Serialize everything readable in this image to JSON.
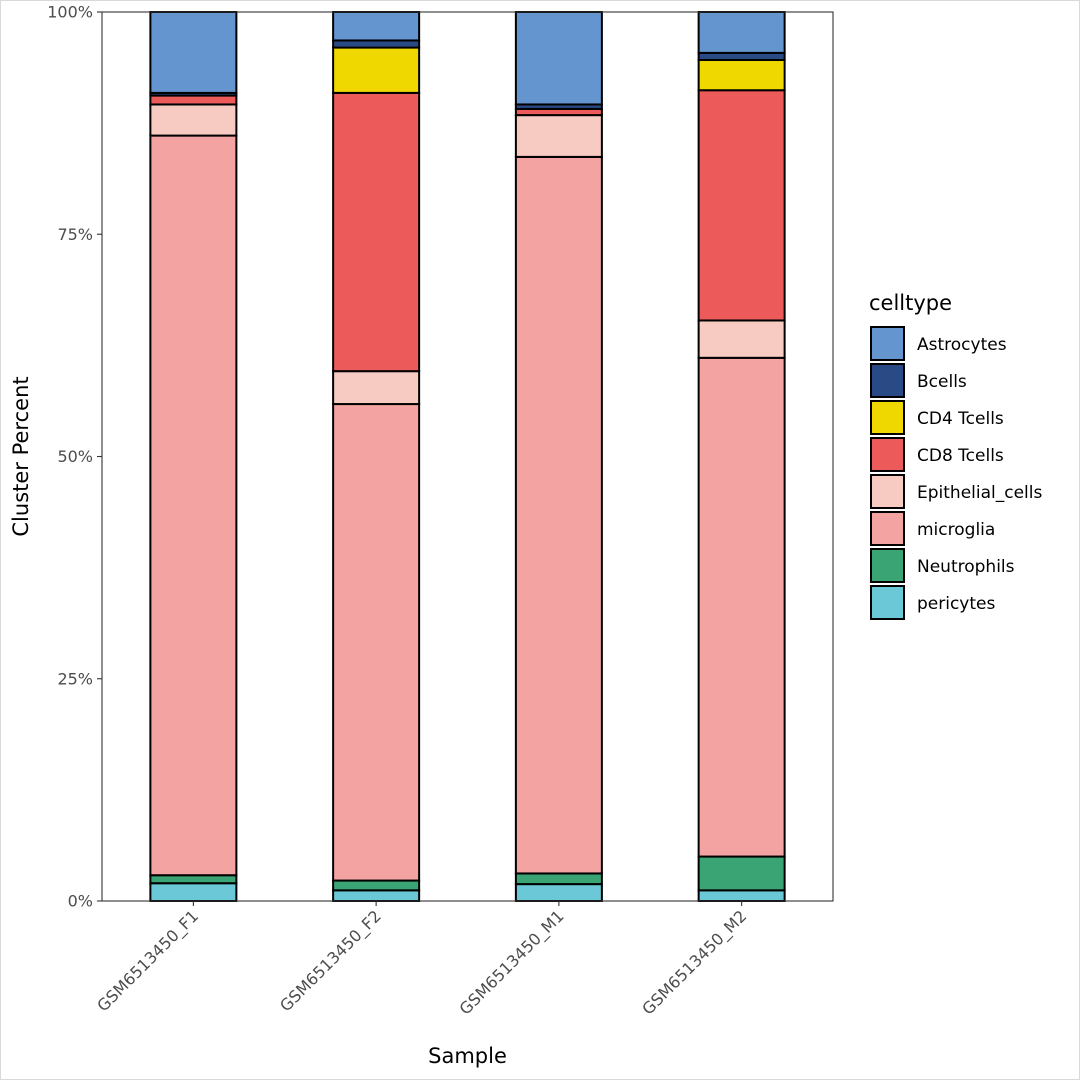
{
  "chart_data": {
    "type": "bar",
    "stacked": true,
    "normalized": true,
    "xlabel": "Sample",
    "ylabel": "Cluster Percent",
    "ylim": [
      0,
      100
    ],
    "yticks": [
      0,
      25,
      50,
      75,
      100
    ],
    "ytick_labels": [
      "0%",
      "25%",
      "50%",
      "75%",
      "100%"
    ],
    "grid": false,
    "legend_title": "celltype",
    "legend_position": "right",
    "categories": [
      "GSM6513450_F1",
      "GSM6513450_F2",
      "GSM6513450_M1",
      "GSM6513450_M2"
    ],
    "series": [
      {
        "name": "pericytes",
        "color": "#6BC9D7",
        "values": [
          2.0,
          1.2,
          1.9,
          1.2
        ]
      },
      {
        "name": "Neutrophils",
        "color": "#3BA474",
        "values": [
          0.9,
          1.1,
          1.2,
          3.8
        ]
      },
      {
        "name": "microglia",
        "color": "#F4A3A3",
        "values": [
          83.2,
          53.6,
          80.6,
          56.1
        ]
      },
      {
        "name": "Epithelial_cells",
        "color": "#F7CBC2",
        "values": [
          3.5,
          3.7,
          4.7,
          4.2
        ]
      },
      {
        "name": "CD8 Tcells",
        "color": "#ED5A5A",
        "values": [
          1.0,
          31.3,
          0.7,
          25.9
        ]
      },
      {
        "name": "CD4 Tcells",
        "color": "#EFD700",
        "values": [
          0.0,
          5.1,
          0.0,
          3.4
        ]
      },
      {
        "name": "Bcells",
        "color": "#2A4A85",
        "values": [
          0.3,
          0.8,
          0.5,
          0.8
        ]
      },
      {
        "name": "Astrocytes",
        "color": "#6495CF",
        "values": [
          9.1,
          3.2,
          10.4,
          4.6
        ]
      }
    ],
    "legend_order": [
      "Astrocytes",
      "Bcells",
      "CD4 Tcells",
      "CD8 Tcells",
      "Epithelial_cells",
      "microglia",
      "Neutrophils",
      "pericytes"
    ]
  }
}
